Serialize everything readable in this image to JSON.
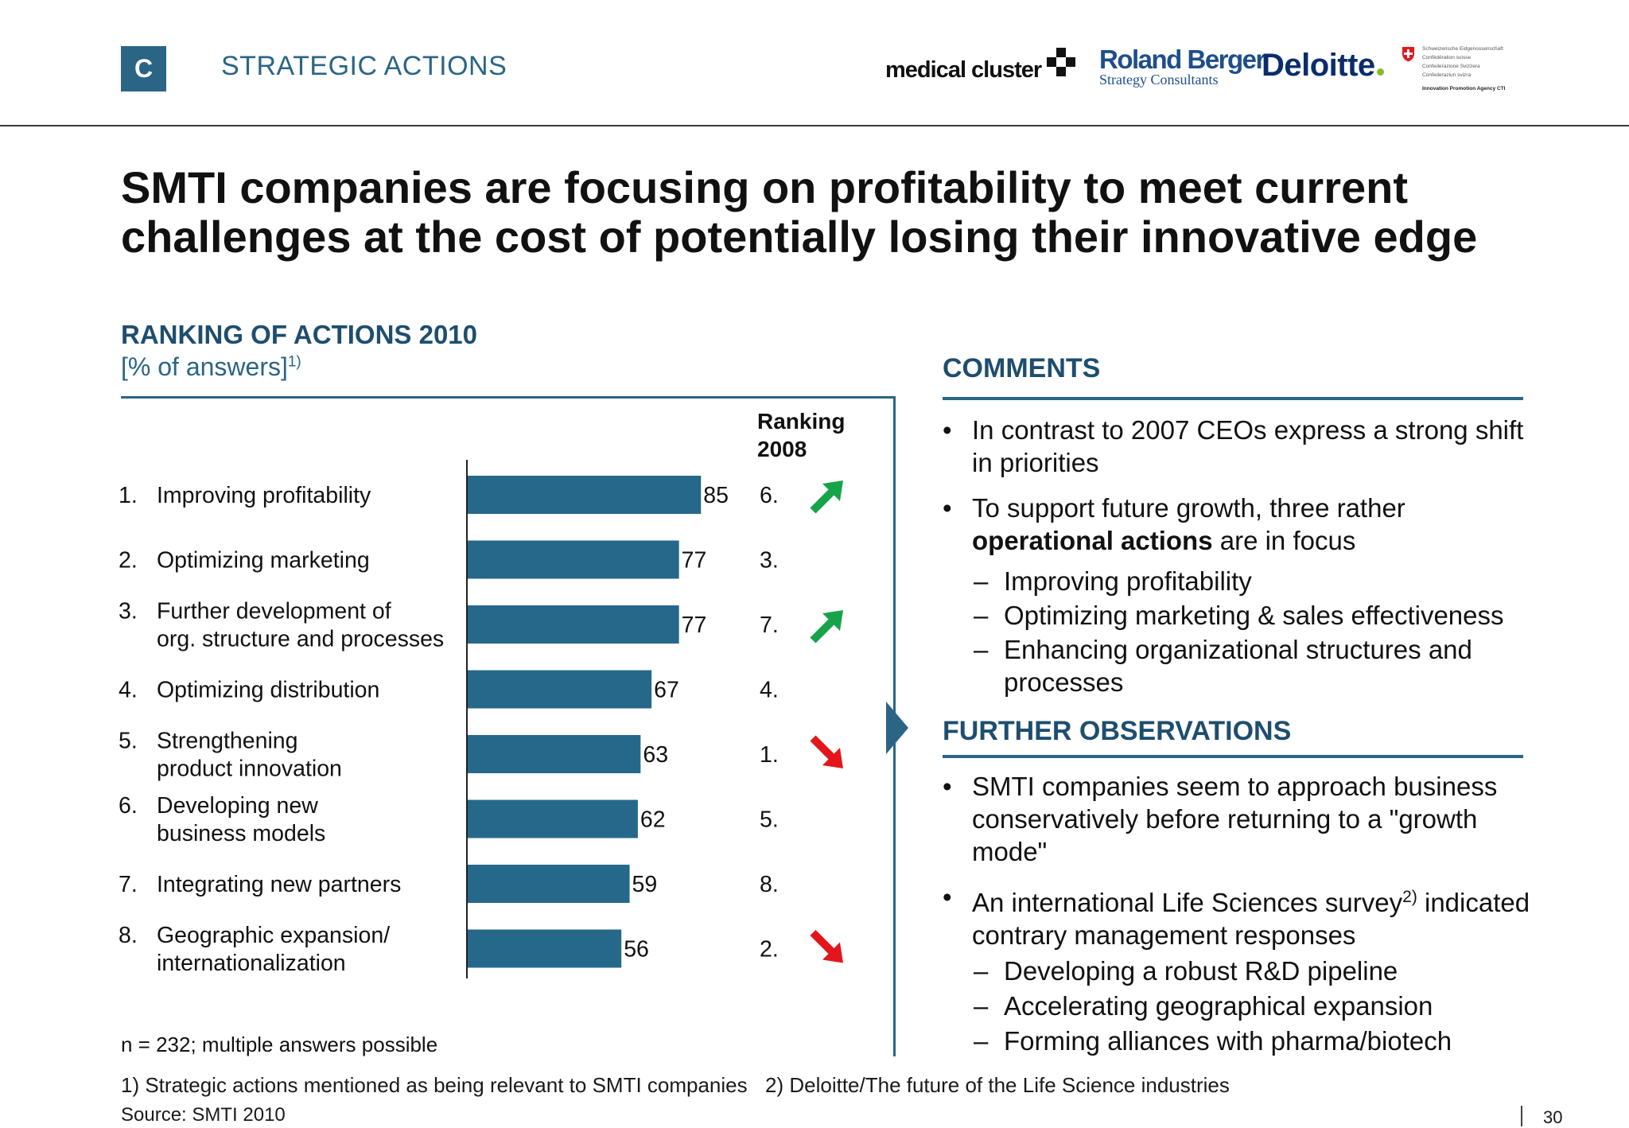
{
  "header": {
    "section_letter": "C",
    "section_label": "STRATEGIC ACTIONS",
    "logos": {
      "medical_cluster": "medical cluster",
      "roland_berger": "Roland Berger",
      "roland_berger_sub": "Strategy Consultants",
      "deloitte": "Deloitte",
      "swiss_lines": [
        "Schweizerische Eidgenossenschaft",
        "Confédération suisse",
        "Confederazione Svizzera",
        "Confederaziun svizra"
      ],
      "cti": "Innovation Promotion Agency CTI"
    }
  },
  "title_line1": "SMTI companies are focusing on profitability to meet current",
  "title_line2": "challenges at the cost of potentially losing their innovative edge",
  "chart_header": {
    "title": "RANKING OF ACTIONS 2010",
    "unit": "[% of answers]",
    "unit_sup": "1)",
    "ranking_header": "Ranking\n2008"
  },
  "chart_data": {
    "type": "bar",
    "orientation": "horizontal",
    "title": "RANKING OF ACTIONS 2010",
    "ylabel": "[% of answers]",
    "categories": [
      {
        "num": "1.",
        "lines": [
          "Improving profitability"
        ]
      },
      {
        "num": "2.",
        "lines": [
          "Optimizing marketing"
        ]
      },
      {
        "num": "3.",
        "lines": [
          "Further development of",
          "org. structure and processes"
        ]
      },
      {
        "num": "4.",
        "lines": [
          "Optimizing distribution"
        ]
      },
      {
        "num": "5.",
        "lines": [
          "Strengthening",
          "product innovation"
        ]
      },
      {
        "num": "6.",
        "lines": [
          "Developing new",
          "business models"
        ]
      },
      {
        "num": "7.",
        "lines": [
          "Integrating new partners"
        ]
      },
      {
        "num": "8.",
        "lines": [
          "Geographic expansion/",
          "internationalization"
        ]
      }
    ],
    "values": [
      85,
      77,
      77,
      67,
      63,
      62,
      59,
      56
    ],
    "ranking_2008": [
      "6.",
      "3.",
      "7.",
      "4.",
      "1.",
      "5.",
      "8.",
      "2."
    ],
    "trend": [
      "up",
      "none",
      "up",
      "none",
      "down",
      "none",
      "none",
      "down"
    ],
    "xlim": [
      0,
      100
    ],
    "bar_color": "#26688a",
    "up_color": "#17a34a",
    "down_color": "#e3171b"
  },
  "sample_note": "n = 232; multiple answers possible",
  "comments": {
    "heading": "COMMENTS",
    "bullet1": "In contrast to 2007 CEOs express a strong shift in priorities",
    "bullet2_pre": "To support future growth, three rather ",
    "bullet2_bold": "operational actions",
    "bullet2_post": " are in focus",
    "subitems": [
      "Improving profitability",
      "Optimizing marketing & sales effectiveness",
      "Enhancing organizational structures and processes"
    ]
  },
  "observations": {
    "heading": "FURTHER OBSERVATIONS",
    "bullet1": "SMTI companies seem to approach business conservatively before returning to a \"growth mode\"",
    "bullet2": "An international Life Sciences survey",
    "bullet2_sup": "2)",
    "bullet2_post": " indicated contrary management responses",
    "subitems": [
      "Developing a robust R&D pipeline",
      "Accelerating geographical expansion",
      "Forming alliances with pharma/biotech"
    ]
  },
  "footer": {
    "footnote1": "1) Strategic actions mentioned as being relevant to SMTI companies",
    "footnote2": "2) Deloitte/The future of the Life Science industries",
    "source": "Source:  SMTI 2010",
    "page_number": "30"
  },
  "colors": {
    "accent": "#2a6585",
    "heading": "#1e4e6e"
  }
}
